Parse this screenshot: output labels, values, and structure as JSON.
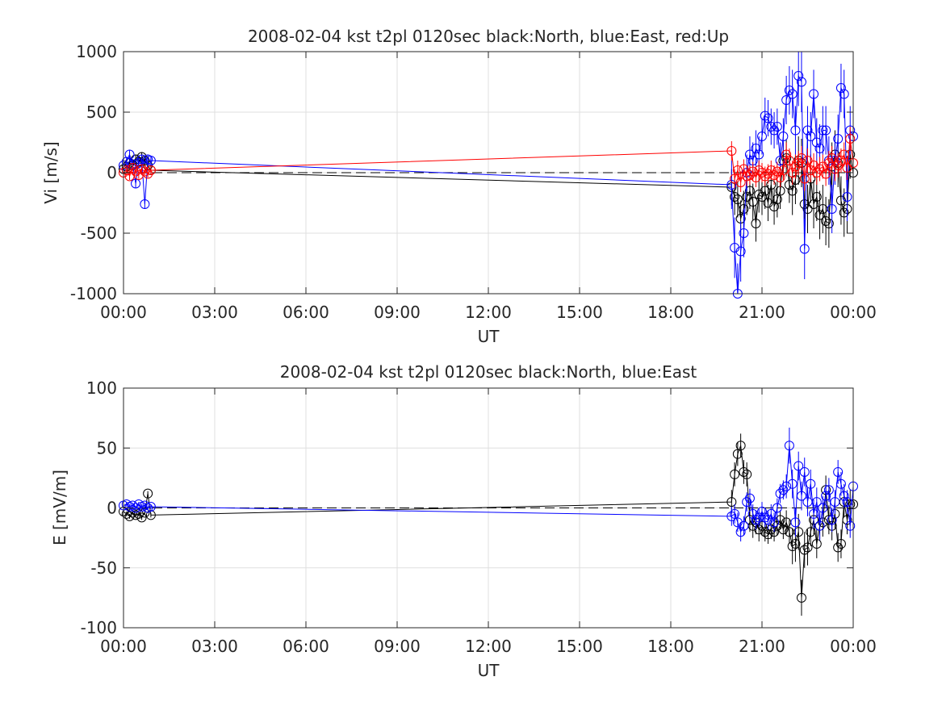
{
  "chart_data": [
    {
      "type": "line",
      "title": "2008-02-04 kst t2pl 0120sec black:North, blue:East, red:Up",
      "xlabel": "UT",
      "ylabel": "Vi [m/s]",
      "xlim_hours": [
        0,
        24
      ],
      "ylim": [
        -1000,
        1000
      ],
      "x_tick_labels": [
        "00:00",
        "03:00",
        "06:00",
        "09:00",
        "12:00",
        "15:00",
        "18:00",
        "21:00",
        "00:00"
      ],
      "y_ticks": [
        -1000,
        -500,
        0,
        500,
        1000
      ],
      "y_tick_labels": [
        "-1000",
        "-500",
        "0",
        "500",
        "1000"
      ],
      "grid": true,
      "zero_line": "dashed",
      "markers": "open circles with vertical error bars",
      "series": [
        {
          "color": "#000000",
          "x": [
            0.0,
            0.1,
            0.2,
            0.3,
            0.4,
            0.5,
            0.6,
            0.7,
            0.8,
            0.9,
            20.0,
            20.1,
            20.2,
            20.3,
            20.4,
            20.5,
            20.6,
            20.7,
            20.8,
            20.9,
            21.0,
            21.1,
            21.2,
            21.3,
            21.4,
            21.5,
            21.6,
            21.7,
            21.8,
            21.9,
            22.0,
            22.1,
            22.2,
            22.3,
            22.4,
            22.5,
            22.6,
            22.7,
            22.8,
            22.9,
            23.0,
            23.1,
            23.2,
            23.3,
            23.4,
            23.5,
            23.6,
            23.7,
            23.8,
            23.9,
            24.0
          ],
          "y": [
            30,
            50,
            80,
            60,
            110,
            90,
            130,
            100,
            60,
            20,
            -120,
            -200,
            -220,
            -380,
            -300,
            -200,
            -150,
            -240,
            -420,
            -180,
            -200,
            -150,
            -250,
            -100,
            -280,
            -220,
            -150,
            100,
            120,
            -100,
            -150,
            -60,
            100,
            80,
            -260,
            -300,
            -50,
            -260,
            -200,
            -350,
            -300,
            -400,
            -420,
            50,
            150,
            80,
            -230,
            -330,
            -300,
            150,
            0
          ],
          "yerr": [
            40,
            40,
            40,
            40,
            40,
            40,
            40,
            40,
            40,
            40,
            150,
            150,
            150,
            150,
            150,
            150,
            150,
            150,
            150,
            150,
            150,
            150,
            150,
            150,
            150,
            150,
            150,
            150,
            150,
            150,
            200,
            200,
            200,
            200,
            200,
            200,
            200,
            200,
            200,
            200,
            200,
            200,
            200,
            200,
            200,
            200,
            200,
            200,
            200,
            200,
            150
          ]
        },
        {
          "color": "#0000ff",
          "x": [
            0.0,
            0.1,
            0.2,
            0.3,
            0.4,
            0.5,
            0.6,
            0.7,
            0.8,
            0.9,
            20.0,
            20.1,
            20.2,
            20.3,
            20.4,
            20.5,
            20.6,
            20.7,
            20.8,
            20.9,
            21.0,
            21.1,
            21.2,
            21.3,
            21.4,
            21.5,
            21.6,
            21.7,
            21.8,
            21.9,
            22.0,
            22.1,
            22.2,
            22.3,
            22.4,
            22.5,
            22.6,
            22.7,
            22.8,
            22.9,
            23.0,
            23.1,
            23.2,
            23.3,
            23.4,
            23.5,
            23.6,
            23.7,
            23.8,
            23.9,
            24.0
          ],
          "y": [
            60,
            90,
            150,
            70,
            -90,
            80,
            110,
            -260,
            110,
            100,
            -100,
            -620,
            -1000,
            -650,
            -500,
            0,
            150,
            100,
            200,
            150,
            300,
            470,
            450,
            380,
            350,
            380,
            100,
            300,
            600,
            680,
            650,
            350,
            800,
            750,
            -630,
            350,
            300,
            650,
            250,
            200,
            350,
            350,
            100,
            -300,
            100,
            280,
            700,
            650,
            -200,
            350,
            300
          ],
          "yerr": [
            40,
            40,
            40,
            40,
            40,
            40,
            40,
            40,
            40,
            40,
            200,
            250,
            250,
            250,
            200,
            150,
            150,
            150,
            150,
            150,
            150,
            150,
            150,
            150,
            150,
            150,
            150,
            150,
            200,
            200,
            200,
            200,
            250,
            250,
            250,
            200,
            200,
            200,
            200,
            200,
            200,
            200,
            200,
            200,
            200,
            200,
            200,
            200,
            200,
            200,
            150
          ]
        },
        {
          "color": "#ff0000",
          "x": [
            0.0,
            0.1,
            0.2,
            0.3,
            0.4,
            0.5,
            0.6,
            0.7,
            0.8,
            0.9,
            20.0,
            20.1,
            20.2,
            20.3,
            20.4,
            20.5,
            20.6,
            20.7,
            20.8,
            20.9,
            21.0,
            21.1,
            21.2,
            21.3,
            21.4,
            21.5,
            21.6,
            21.7,
            21.8,
            21.9,
            22.0,
            22.1,
            22.2,
            22.3,
            22.4,
            22.5,
            22.6,
            22.7,
            22.8,
            22.9,
            23.0,
            23.1,
            23.2,
            23.3,
            23.4,
            23.5,
            23.6,
            23.7,
            23.8,
            23.9,
            24.0
          ],
          "y": [
            0,
            20,
            -30,
            40,
            10,
            -20,
            30,
            10,
            -10,
            20,
            180,
            -50,
            20,
            -80,
            30,
            -30,
            -20,
            10,
            -40,
            20,
            0,
            -30,
            -10,
            20,
            -20,
            10,
            -40,
            20,
            150,
            100,
            0,
            50,
            80,
            120,
            -50,
            100,
            20,
            60,
            0,
            30,
            50,
            -10,
            80,
            120,
            30,
            60,
            100,
            150,
            40,
            280,
            80
          ],
          "yerr": [
            30,
            30,
            30,
            30,
            30,
            30,
            30,
            30,
            30,
            30,
            80,
            80,
            80,
            80,
            80,
            80,
            80,
            80,
            80,
            80,
            80,
            80,
            80,
            80,
            80,
            80,
            80,
            80,
            100,
            100,
            100,
            100,
            100,
            100,
            100,
            100,
            100,
            100,
            100,
            100,
            100,
            100,
            100,
            100,
            100,
            100,
            100,
            100,
            100,
            100,
            80
          ]
        }
      ]
    },
    {
      "type": "line",
      "title": "2008-02-04 kst t2pl 0120sec black:North, blue:East",
      "xlabel": "UT",
      "ylabel": "E [mV/m]",
      "xlim_hours": [
        0,
        24
      ],
      "ylim": [
        -100,
        100
      ],
      "x_tick_labels": [
        "00:00",
        "03:00",
        "06:00",
        "09:00",
        "12:00",
        "15:00",
        "18:00",
        "21:00",
        "00:00"
      ],
      "y_ticks": [
        -100,
        -50,
        0,
        50,
        100
      ],
      "y_tick_labels": [
        "-100",
        "-50",
        "0",
        "50",
        "100"
      ],
      "grid": true,
      "zero_line": "dashed",
      "markers": "open circles with vertical error bars",
      "series": [
        {
          "color": "#000000",
          "x": [
            0.0,
            0.1,
            0.2,
            0.3,
            0.4,
            0.5,
            0.6,
            0.7,
            0.8,
            0.9,
            20.0,
            20.1,
            20.2,
            20.3,
            20.4,
            20.5,
            20.6,
            20.7,
            20.8,
            20.9,
            21.0,
            21.1,
            21.2,
            21.3,
            21.4,
            21.5,
            21.6,
            21.7,
            21.8,
            21.9,
            22.0,
            22.1,
            22.2,
            22.3,
            22.4,
            22.5,
            22.6,
            22.7,
            22.8,
            22.9,
            23.0,
            23.1,
            23.2,
            23.3,
            23.4,
            23.5,
            23.6,
            23.7,
            23.8,
            23.9,
            24.0
          ],
          "y": [
            -3,
            -5,
            -7,
            -4,
            -6,
            -5,
            -8,
            -4,
            12,
            -6,
            5,
            28,
            45,
            52,
            30,
            28,
            -10,
            -15,
            -12,
            -18,
            -15,
            -20,
            -22,
            -18,
            -20,
            -15,
            -10,
            -18,
            -12,
            -20,
            -32,
            -30,
            -20,
            -75,
            -35,
            -33,
            -20,
            -10,
            -30,
            -15,
            -12,
            15,
            -10,
            -15,
            -5,
            -33,
            -30,
            5,
            -10,
            3,
            3
          ],
          "yerr": [
            2,
            2,
            2,
            2,
            2,
            2,
            2,
            2,
            2,
            2,
            10,
            10,
            10,
            10,
            10,
            10,
            10,
            10,
            10,
            10,
            8,
            8,
            8,
            8,
            8,
            8,
            8,
            8,
            10,
            10,
            15,
            15,
            15,
            15,
            15,
            15,
            12,
            12,
            12,
            12,
            12,
            12,
            12,
            12,
            12,
            12,
            12,
            12,
            12,
            12,
            10
          ]
        },
        {
          "color": "#0000ff",
          "x": [
            0.0,
            0.1,
            0.2,
            0.3,
            0.4,
            0.5,
            0.6,
            0.7,
            0.8,
            0.9,
            20.0,
            20.1,
            20.2,
            20.3,
            20.4,
            20.5,
            20.6,
            20.7,
            20.8,
            20.9,
            21.0,
            21.1,
            21.2,
            21.3,
            21.4,
            21.5,
            21.6,
            21.7,
            21.8,
            21.9,
            22.0,
            22.1,
            22.2,
            22.3,
            22.4,
            22.5,
            22.6,
            22.7,
            22.8,
            22.9,
            23.0,
            23.1,
            23.2,
            23.3,
            23.4,
            23.5,
            23.6,
            23.7,
            23.8,
            23.9,
            24.0
          ],
          "y": [
            2,
            3,
            1,
            2,
            0,
            3,
            1,
            2,
            0,
            1,
            -7,
            -5,
            -12,
            -20,
            -15,
            5,
            8,
            -5,
            -10,
            -8,
            -3,
            -8,
            -10,
            -5,
            -12,
            0,
            12,
            15,
            18,
            52,
            20,
            -12,
            35,
            10,
            30,
            5,
            20,
            -5,
            5,
            -15,
            0,
            10,
            15,
            -10,
            5,
            30,
            20,
            10,
            5,
            -15,
            18
          ],
          "yerr": [
            2,
            2,
            2,
            2,
            2,
            2,
            2,
            2,
            2,
            2,
            8,
            8,
            8,
            8,
            8,
            8,
            8,
            8,
            8,
            8,
            8,
            8,
            8,
            8,
            8,
            8,
            8,
            8,
            10,
            15,
            12,
            12,
            12,
            12,
            12,
            12,
            12,
            12,
            12,
            12,
            10,
            10,
            10,
            10,
            10,
            10,
            10,
            10,
            10,
            10,
            10
          ]
        }
      ]
    }
  ]
}
